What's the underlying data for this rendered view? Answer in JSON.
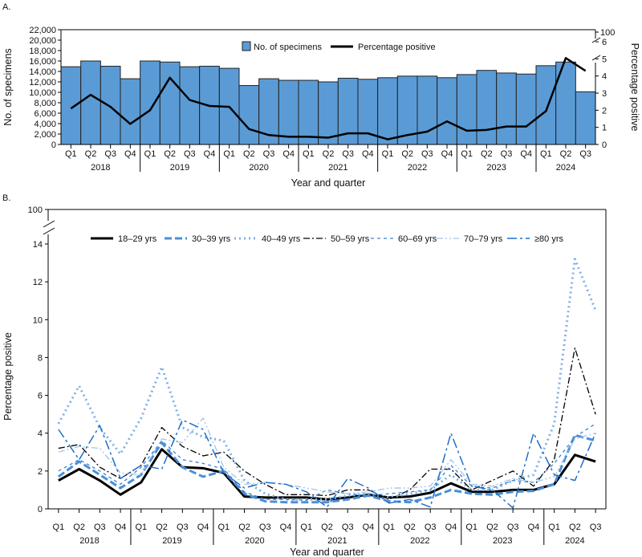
{
  "chart_data": [
    {
      "panel_label": "A.",
      "type": "bar+line",
      "xlabel": "Year and quarter",
      "ylabel_left": "No. of specimens",
      "ylabel_right": "Percentage positive",
      "ylim_left": [
        0,
        22000
      ],
      "yticks_left": [
        "0",
        "2,000",
        "4,000",
        "6,000",
        "8,000",
        "10,000",
        "12,000",
        "14,000",
        "16,000",
        "18,000",
        "20,000",
        "22,000"
      ],
      "ylim_right": [
        0,
        6
      ],
      "yticks_right": [
        "0",
        "1",
        "2",
        "3",
        "4",
        "5",
        "6"
      ],
      "right_axis_break_top": "100",
      "quarters": [
        "Q1",
        "Q2",
        "Q3",
        "Q4",
        "Q1",
        "Q2",
        "Q3",
        "Q4",
        "Q1",
        "Q2",
        "Q3",
        "Q4",
        "Q1",
        "Q2",
        "Q3",
        "Q4",
        "Q1",
        "Q2",
        "Q3",
        "Q4",
        "Q1",
        "Q2",
        "Q3",
        "Q4",
        "Q1",
        "Q2",
        "Q3"
      ],
      "years": [
        "2018",
        "2019",
        "2020",
        "2021",
        "2022",
        "2023",
        "2024"
      ],
      "legend": [
        "No. of specimens",
        "Percentage positive"
      ],
      "legend_placement": "top-center",
      "series": [
        {
          "name": "No. of specimens",
          "kind": "bar",
          "color": "#5b9bd5",
          "values": [
            14900,
            16000,
            15000,
            12600,
            16000,
            15800,
            14900,
            15000,
            14600,
            11300,
            12600,
            12300,
            12300,
            12000,
            12700,
            12500,
            12800,
            13100,
            13100,
            12800,
            13400,
            14200,
            13700,
            13500,
            15100,
            15800,
            10100
          ]
        },
        {
          "name": "Percentage positive",
          "kind": "line",
          "color": "#000000",
          "values": [
            2.1,
            2.9,
            2.2,
            1.2,
            2.0,
            3.9,
            2.6,
            2.25,
            2.2,
            0.9,
            0.55,
            0.45,
            0.45,
            0.4,
            0.65,
            0.65,
            0.3,
            0.55,
            0.75,
            1.35,
            0.8,
            0.85,
            1.05,
            1.05,
            1.95,
            5.05,
            4.3
          ]
        }
      ]
    },
    {
      "panel_label": "B.",
      "type": "line",
      "xlabel": "Year and quarter",
      "ylabel": "Percentage positive",
      "ylim": [
        0,
        14
      ],
      "yticks": [
        "0",
        "2",
        "4",
        "6",
        "8",
        "10",
        "12",
        "14"
      ],
      "axis_break_top": "100",
      "legend_placement": "top",
      "series": [
        {
          "name": "18–29 yrs",
          "color": "#000000",
          "values": [
            1.5,
            2.1,
            1.5,
            0.75,
            1.4,
            3.15,
            2.2,
            2.15,
            1.9,
            0.65,
            0.6,
            0.6,
            0.6,
            0.5,
            0.6,
            0.75,
            0.6,
            0.65,
            0.85,
            1.35,
            0.9,
            0.9,
            1.0,
            1.0,
            1.3,
            2.85,
            2.5
          ]
        },
        {
          "name": "30–39 yrs",
          "color": "#4a8fd8",
          "values": [
            1.7,
            2.5,
            1.8,
            1.1,
            1.8,
            3.5,
            2.2,
            1.7,
            2.0,
            0.8,
            0.4,
            0.35,
            0.35,
            0.35,
            0.5,
            0.7,
            0.4,
            0.35,
            0.6,
            1.0,
            0.8,
            0.75,
            0.9,
            0.95,
            1.3,
            3.9,
            3.6
          ]
        },
        {
          "name": "40–49 yrs",
          "color": "#7fb0e6",
          "values": [
            4.5,
            6.5,
            4.3,
            2.9,
            4.8,
            7.5,
            4.3,
            3.8,
            3.6,
            1.5,
            0.8,
            0.5,
            0.5,
            0.5,
            0.7,
            0.8,
            0.6,
            0.8,
            1.0,
            1.8,
            1.0,
            1.0,
            1.5,
            1.8,
            4.5,
            13.2,
            10.5
          ]
        },
        {
          "name": "50–59 yrs",
          "color": "#000000",
          "values": [
            3.2,
            3.4,
            2.2,
            1.6,
            2.3,
            4.3,
            3.3,
            2.8,
            3.0,
            2.0,
            1.3,
            0.75,
            0.75,
            0.7,
            1.0,
            1.0,
            0.5,
            1.0,
            2.1,
            2.1,
            1.0,
            1.5,
            2.0,
            1.2,
            2.6,
            8.5,
            5.0
          ]
        },
        {
          "name": "60–69 yrs",
          "color": "#3b82d0",
          "values": [
            2.0,
            2.6,
            2.0,
            1.3,
            2.2,
            3.6,
            2.6,
            2.4,
            2.1,
            0.9,
            0.5,
            0.5,
            0.45,
            1.0,
            0.8,
            0.7,
            0.8,
            0.9,
            1.0,
            2.3,
            1.2,
            1.1,
            1.5,
            1.4,
            2.4,
            3.8,
            4.5
          ]
        },
        {
          "name": "70–79 yrs",
          "color": "#a0c4ec",
          "values": [
            3.0,
            3.3,
            3.2,
            1.9,
            1.8,
            3.7,
            3.5,
            4.8,
            2.2,
            1.3,
            1.4,
            1.3,
            1.1,
            0.9,
            0.8,
            0.9,
            1.1,
            1.1,
            1.2,
            2.6,
            1.3,
            1.2,
            1.6,
            1.4,
            1.7,
            3.7,
            4.0
          ]
        },
        {
          "name": "≥80 yrs",
          "color": "#1f6fc8",
          "values": [
            4.2,
            2.6,
            4.4,
            1.6,
            2.3,
            2.1,
            4.7,
            4.2,
            1.9,
            1.1,
            1.4,
            1.3,
            0.9,
            0.1,
            1.6,
            1.1,
            0.3,
            0.5,
            0.1,
            4.0,
            1.2,
            1.0,
            0.05,
            4.0,
            1.8,
            1.5,
            4.0
          ]
        }
      ]
    }
  ]
}
